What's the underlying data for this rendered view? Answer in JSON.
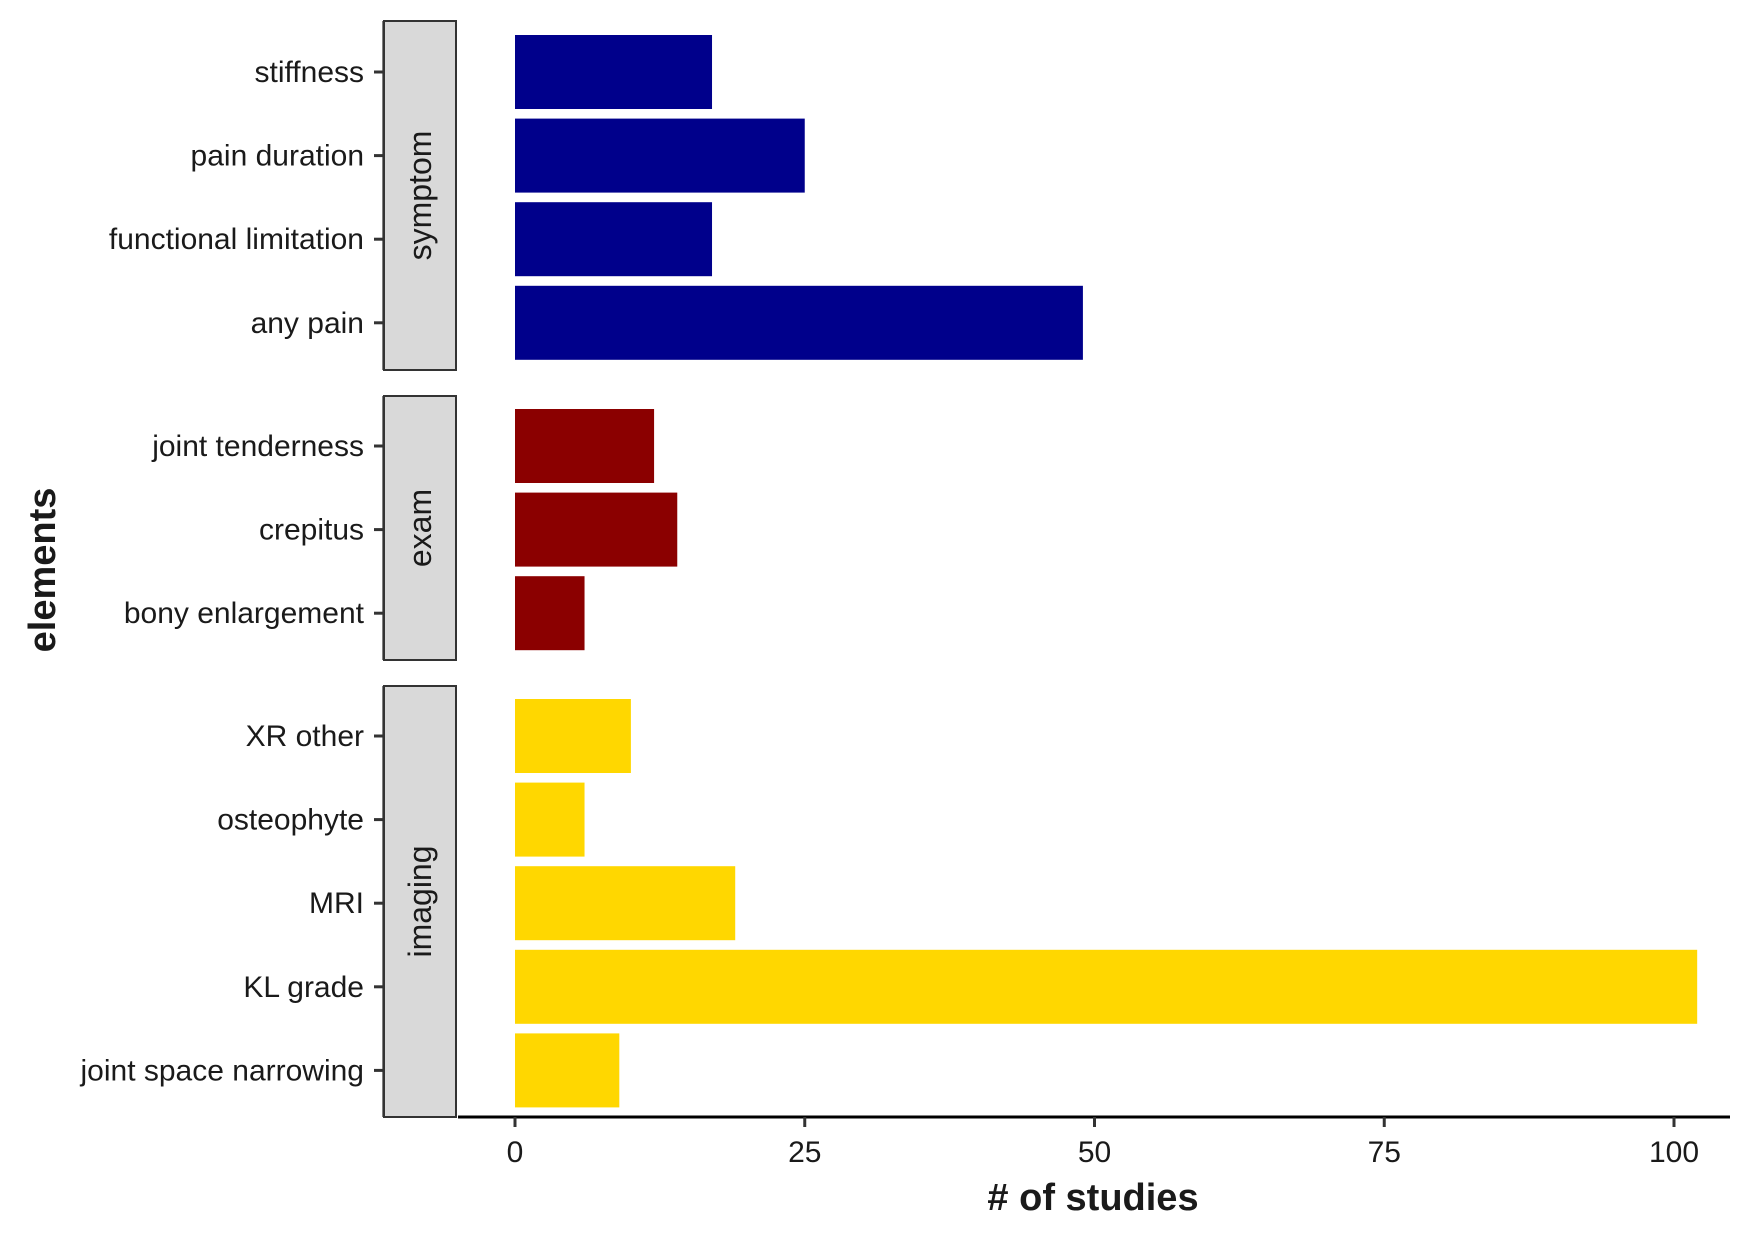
{
  "chart_data": {
    "type": "bar",
    "orientation": "horizontal",
    "xlabel": "# of studies",
    "ylabel": "elements",
    "xlim": [
      0,
      105
    ],
    "xticks": [
      0,
      25,
      50,
      75,
      100
    ],
    "grid": false,
    "legend": "none",
    "panels": [
      {
        "name": "symptom",
        "color": "#00008B",
        "categories": [
          "stiffness",
          "pain duration",
          "functional limitation",
          "any pain"
        ],
        "values": [
          17,
          25,
          17,
          49
        ]
      },
      {
        "name": "exam",
        "color": "#8B0000",
        "categories": [
          "joint tenderness",
          "crepitus",
          "bony enlargement"
        ],
        "values": [
          12,
          14,
          6
        ]
      },
      {
        "name": "imaging",
        "color": "#FFD700",
        "categories": [
          "XR other",
          "osteophyte",
          "MRI",
          "KL grade",
          "joint space narrowing"
        ],
        "values": [
          10,
          6,
          19,
          102,
          9
        ]
      }
    ]
  }
}
